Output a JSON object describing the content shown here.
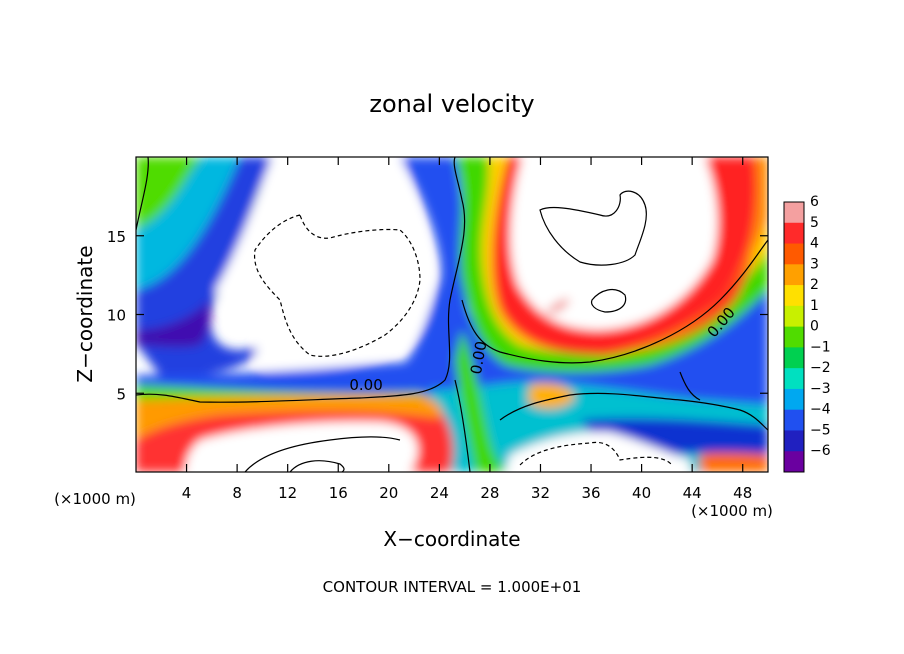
{
  "chart_data": {
    "type": "heatmap",
    "title": "zonal velocity",
    "xlabel": "X−coordinate",
    "ylabel": "Z−coordinate",
    "x_unit_label": "(×1000 m)",
    "footer": "CONTOUR INTERVAL = 1.000E+01",
    "xlim": [
      0,
      50
    ],
    "ylim": [
      0,
      20
    ],
    "x_ticks": [
      4,
      8,
      12,
      16,
      20,
      24,
      28,
      32,
      36,
      40,
      44,
      48
    ],
    "y_ticks": [
      5,
      10,
      15
    ],
    "colorbar": {
      "ticks": [
        6,
        5,
        4,
        3,
        2,
        1,
        0,
        -1,
        -2,
        -3,
        -4,
        -5,
        -6
      ],
      "labels": [
        "6",
        "5",
        "4",
        "3",
        "2",
        "1",
        "0",
        "−1",
        "−2",
        "−3",
        "−4",
        "−5",
        "−6"
      ],
      "colors": [
        "#f4a0a0",
        "#ff2a2a",
        "#ff5a00",
        "#ffa000",
        "#ffe000",
        "#c8f000",
        "#50dc00",
        "#00d050",
        "#00e0c0",
        "#00a8f0",
        "#2050f0",
        "#2020c0",
        "#6a00a0"
      ]
    },
    "contour_labels": [
      {
        "text": "0.00",
        "x": 18.2,
        "y": 5.2,
        "rotate": 0
      },
      {
        "text": "0.00",
        "x": 27.5,
        "y": 7.2,
        "rotate": -80
      },
      {
        "text": "0.00",
        "x": 46.6,
        "y": 9.3,
        "rotate": -50
      }
    ]
  }
}
